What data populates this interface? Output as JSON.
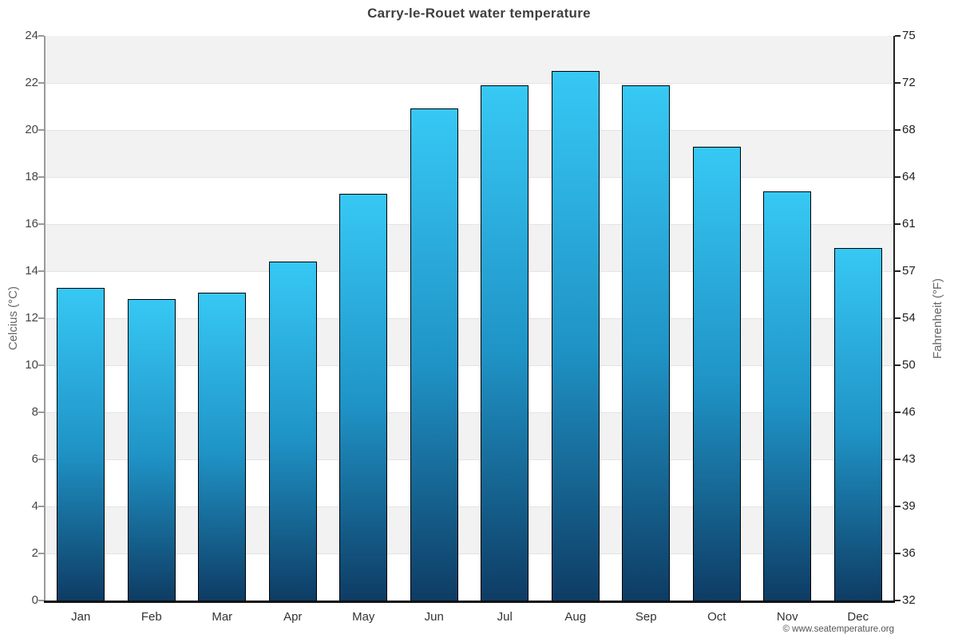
{
  "title": "Carry-le-Rouet water temperature",
  "footer": {
    "credit": "© www.seatemperature.org"
  },
  "chart_data": {
    "type": "bar",
    "title": "Carry-le-Rouet water temperature",
    "categories": [
      "Jan",
      "Feb",
      "Mar",
      "Apr",
      "May",
      "Jun",
      "Jul",
      "Aug",
      "Sep",
      "Oct",
      "Nov",
      "Dec"
    ],
    "values": [
      13.3,
      12.8,
      13.1,
      14.4,
      17.3,
      20.9,
      21.9,
      22.5,
      21.9,
      19.3,
      17.4,
      15.0
    ],
    "unit": "°C",
    "ylabel_left": "Celcius (°C)",
    "ylabel_right": "Fahrenheit (°F)",
    "ylim": [
      0,
      24
    ],
    "y_left_ticks": [
      0,
      2,
      4,
      6,
      8,
      10,
      12,
      14,
      16,
      18,
      20,
      22,
      24
    ],
    "y_right_ticks": [
      "32",
      "36",
      "39",
      "43",
      "46",
      "50",
      "54",
      "57",
      "61",
      "64",
      "68",
      "72",
      "75"
    ],
    "grid": "alternating horizontal bands every 2°C",
    "legend": "none",
    "colors": {
      "bar_gradient_top": "#37c8f4",
      "bar_gradient_mid": "#1f93c6",
      "bar_gradient_bottom": "#0e3c64",
      "bar_border": "#000000",
      "band": "#f2f2f2",
      "gridline": "#e4e4e4",
      "title_text": "#3f3f3f"
    }
  }
}
